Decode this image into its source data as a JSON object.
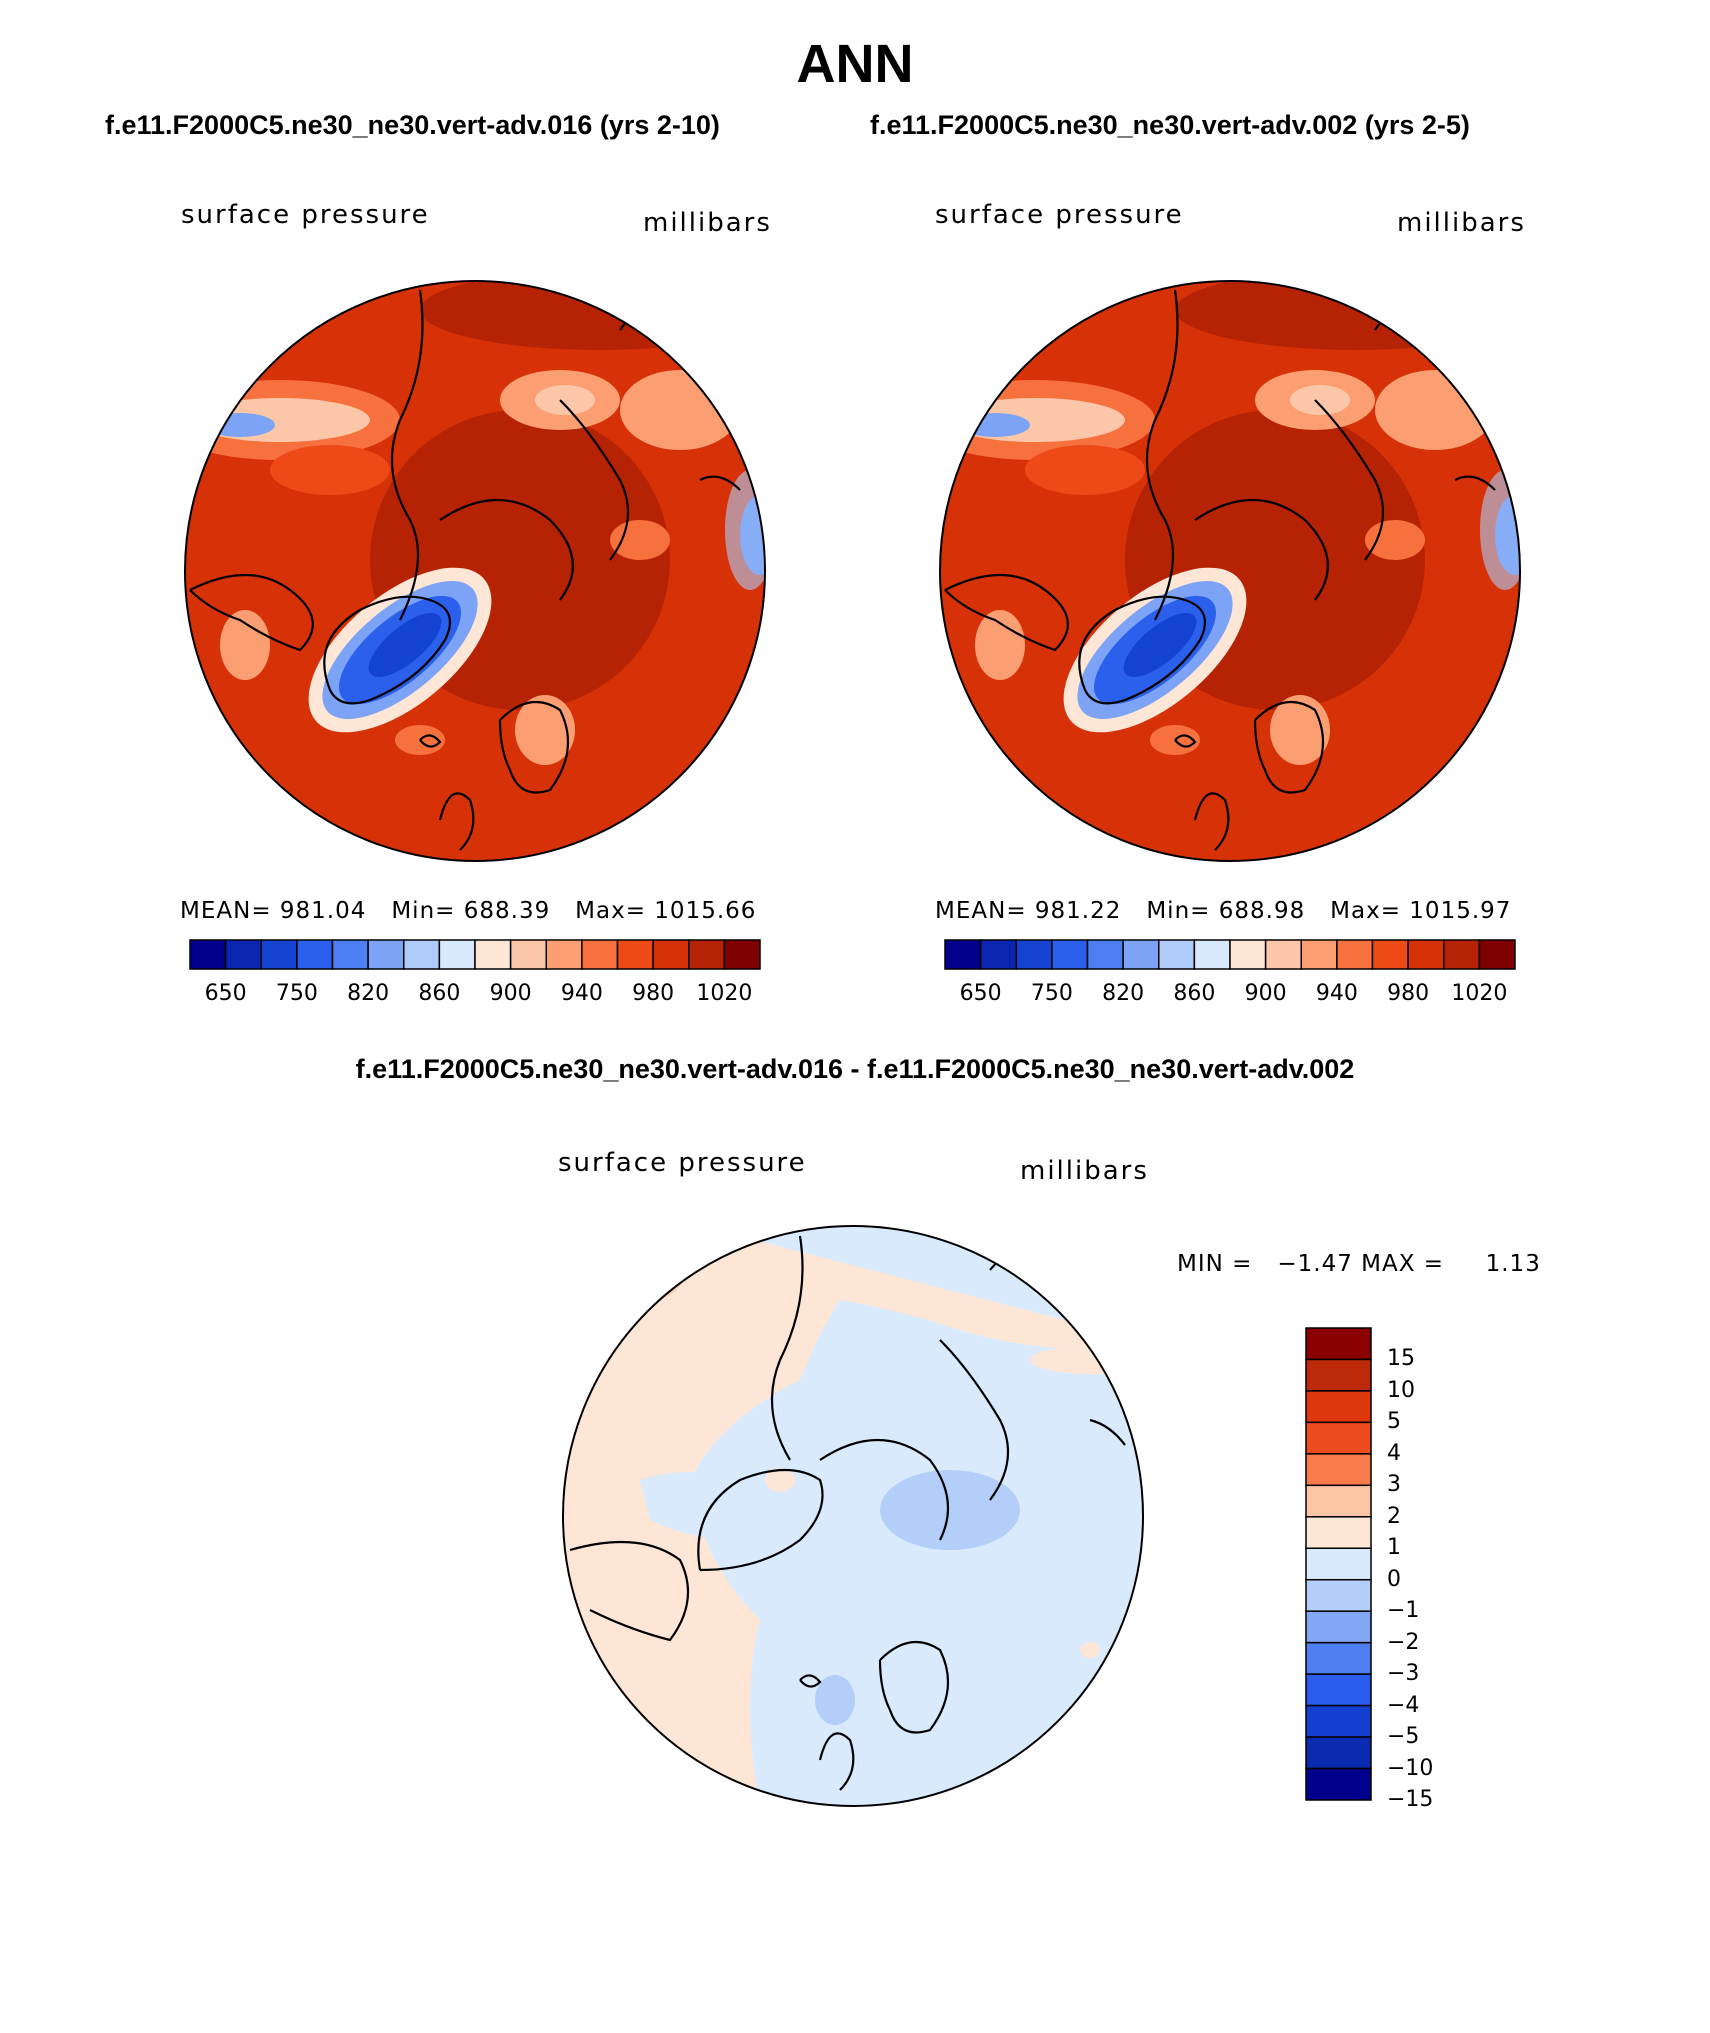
{
  "title": "ANN",
  "case_titles": [
    "f.e11.F2000C5.ne30_ne30.vert-adv.016 (yrs 2-10)",
    "f.e11.F2000C5.ne30_ne30.vert-adv.002 (yrs 2-5)"
  ],
  "diff_title": "f.e11.F2000C5.ne30_ne30.vert-adv.016 - f.e11.F2000C5.ne30_ne30.vert-adv.002",
  "panels": [
    {
      "left_label": "surface pressure",
      "right_label": "millibars",
      "stats": {
        "mean_label": "MEAN=",
        "mean": "981.04",
        "min_label": "Min=",
        "min": "688.39",
        "max_label": "Max=",
        "max": "1015.66"
      }
    },
    {
      "left_label": "surface pressure",
      "right_label": "millibars",
      "stats": {
        "mean_label": "MEAN=",
        "mean": "981.22",
        "min_label": "Min=",
        "min": "688.98",
        "max_label": "Max=",
        "max": "1015.97"
      }
    }
  ],
  "diff_panel": {
    "left_label": "surface pressure",
    "right_label": "millibars",
    "minmax": "MIN =   −1.47 MAX =     1.13"
  },
  "colorbar": {
    "colors": [
      "#00008c",
      "#0a26b0",
      "#1443d2",
      "#2a60eb",
      "#4d7ff2",
      "#7ca3f6",
      "#aecbf9",
      "#d8e9fd",
      "#fde6d6",
      "#fcc6a8",
      "#fb9e72",
      "#f7713e",
      "#ed4a17",
      "#d73207",
      "#b62304",
      "#7e0000"
    ],
    "tick_labels": [
      "650",
      "750",
      "820",
      "860",
      "900",
      "940",
      "980",
      "1020"
    ]
  },
  "diff_colorbar": {
    "colors_top_to_bottom": [
      "#8b0000",
      "#bd2a0a",
      "#dc380c",
      "#ec4c1e",
      "#f97b4a",
      "#fcc5a4",
      "#fde6d6",
      "#d9eafd",
      "#b3cef8",
      "#82a8f5",
      "#4f7ef0",
      "#2a5ded",
      "#1440d2",
      "#0a2ab0",
      "#00008c"
    ],
    "tick_labels": [
      "15",
      "10",
      "5",
      "4",
      "3",
      "2",
      "1",
      "0",
      "−1",
      "−2",
      "−3",
      "−4",
      "−5",
      "−10",
      "−15"
    ]
  }
}
